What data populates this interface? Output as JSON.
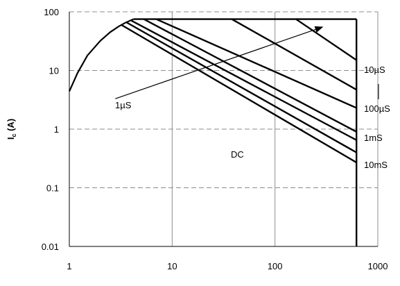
{
  "chart_data": {
    "type": "line",
    "title": "",
    "x_scale": "log",
    "y_scale": "log",
    "xlim": [
      1,
      1000
    ],
    "ylim": [
      0.01,
      100
    ],
    "x_tick_labels": [
      "1",
      "10",
      "100",
      "1000"
    ],
    "y_tick_labels": [
      "100",
      "10",
      "1",
      "0.1",
      "0.01"
    ],
    "ylabel": "I_c (A)",
    "ylabel_main": "I",
    "ylabel_sub": "c",
    "ylabel_rest": " (A)",
    "xlabel": "",
    "grid": true,
    "grid_style": "x: solid, y: dashed",
    "ic_max_A": 75,
    "vce_max_V": 620,
    "series": [
      {
        "name": "DC",
        "x": [
          3.2,
          620
        ],
        "y": [
          60,
          0.27
        ]
      },
      {
        "name": "10mS",
        "x": [
          3.6,
          620
        ],
        "y": [
          66,
          0.4
        ]
      },
      {
        "name": "1mS",
        "x": [
          4.0,
          620
        ],
        "y": [
          71,
          0.65
        ]
      },
      {
        "name": "100µS",
        "x": [
          5.3,
          620
        ],
        "y": [
          75,
          0.9
        ]
      },
      {
        "name": "10µS",
        "x": [
          7.0,
          620
        ],
        "y": [
          75,
          2.3
        ]
      },
      {
        "name": "",
        "x": [
          38,
          620
        ],
        "y": [
          75,
          4.7
        ]
      },
      {
        "name": "",
        "x": [
          160,
          620
        ],
        "y": [
          75,
          15
        ]
      }
    ],
    "envelope": {
      "x": [
        1,
        1.2,
        1.5,
        2,
        2.5,
        3,
        3.5,
        4.2
      ],
      "y": [
        4.4,
        9,
        18,
        32,
        45,
        56,
        65,
        75
      ]
    },
    "labels": {
      "us10": "10µS",
      "us100": "100µS",
      "ms1": "1mS",
      "ms10": "10mS",
      "dc": "DC",
      "us1": "1µS"
    },
    "arrow": {
      "from": [
        2.8,
        3.3
      ],
      "to": [
        290,
        55
      ]
    }
  }
}
